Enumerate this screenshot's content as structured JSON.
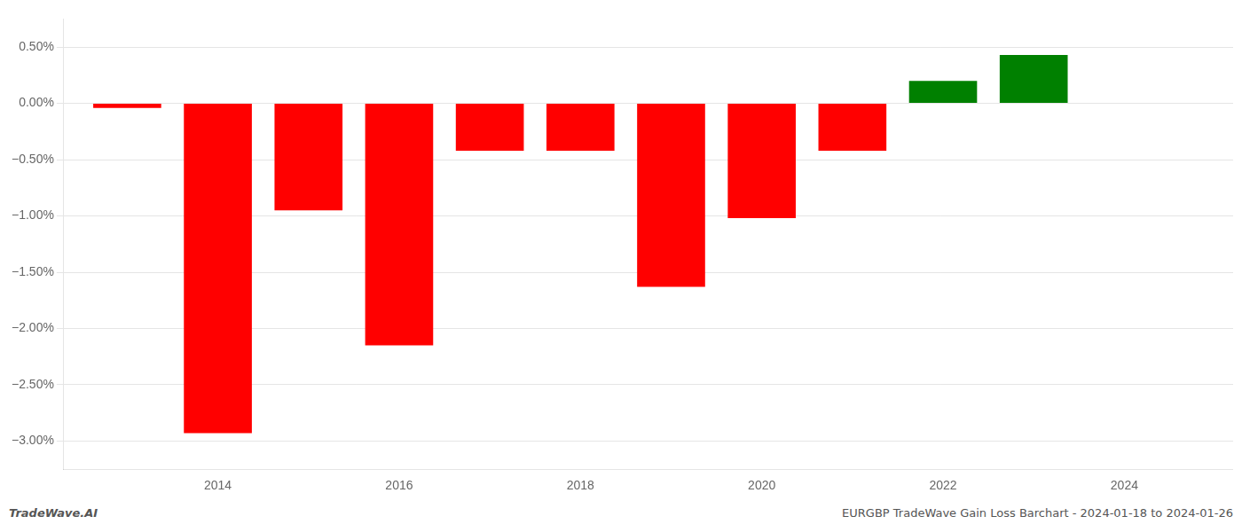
{
  "chart_data": {
    "type": "bar",
    "x": [
      2013,
      2014,
      2015,
      2016,
      2017,
      2018,
      2019,
      2020,
      2021,
      2022,
      2023
    ],
    "values": [
      -0.04,
      -2.93,
      -0.95,
      -2.15,
      -0.42,
      -0.42,
      -1.63,
      -1.02,
      -0.42,
      0.2,
      0.43
    ],
    "colors": [
      "#ff0000",
      "#ff0000",
      "#ff0000",
      "#ff0000",
      "#ff0000",
      "#ff0000",
      "#ff0000",
      "#ff0000",
      "#ff0000",
      "#008000",
      "#008000"
    ],
    "xlim": [
      2012.3,
      2025.2
    ],
    "xticks": [
      2014,
      2016,
      2018,
      2020,
      2022,
      2024
    ],
    "ylim": [
      -3.25,
      0.75
    ],
    "yticks": [
      {
        "value": -3.0,
        "label": "−3.00%"
      },
      {
        "value": -2.5,
        "label": "−2.50%"
      },
      {
        "value": -2.0,
        "label": "−2.00%"
      },
      {
        "value": -1.5,
        "label": "−1.50%"
      },
      {
        "value": -1.0,
        "label": "−1.00%"
      },
      {
        "value": -0.5,
        "label": "−0.50%"
      },
      {
        "value": 0.0,
        "label": "0.00%"
      },
      {
        "value": 0.5,
        "label": "0.50%"
      }
    ],
    "grid": true,
    "annotations": [
      "TradeWave.AI",
      "EURGBP TradeWave Gain Loss Barchart - 2024-01-18 to 2024-01-26"
    ]
  }
}
